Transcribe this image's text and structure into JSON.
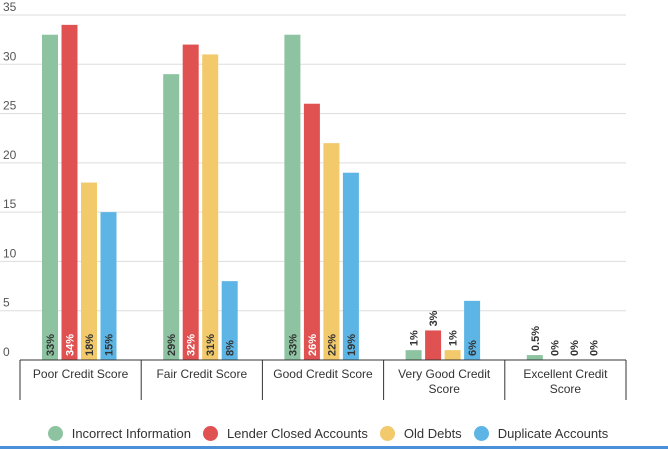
{
  "chart_data": {
    "type": "bar",
    "categories": [
      [
        "Poor Credit Score"
      ],
      [
        "Fair Credit Score"
      ],
      [
        "Good Credit Score"
      ],
      [
        "Very Good Credit",
        "Score"
      ],
      [
        "Excellent Credit",
        "Score"
      ]
    ],
    "series": [
      {
        "name": "Incorrect Information",
        "color": "#8dc3a0",
        "values": [
          33,
          29,
          33,
          1,
          0.5
        ],
        "labels": [
          "33%",
          "29%",
          "33%",
          "1%",
          "0.5%"
        ]
      },
      {
        "name": "Lender Closed Accounts",
        "color": "#e05252",
        "values": [
          34,
          32,
          26,
          3,
          0
        ],
        "labels": [
          "34%",
          "32%",
          "26%",
          "3%",
          "0%"
        ]
      },
      {
        "name": "Old Debts",
        "color": "#f2c96b",
        "values": [
          18,
          31,
          22,
          1,
          0
        ],
        "labels": [
          "18%",
          "31%",
          "22%",
          "1%",
          "0%"
        ]
      },
      {
        "name": "Duplicate Accounts",
        "color": "#5db5e6",
        "values": [
          15,
          8,
          19,
          6,
          0
        ],
        "labels": [
          "15%",
          "8%",
          "19%",
          "6%",
          "0%"
        ]
      }
    ],
    "y_ticks": [
      0,
      5,
      10,
      15,
      20,
      25,
      30,
      35
    ],
    "ylim": [
      0,
      35
    ],
    "grid": true,
    "legend_position": "bottom",
    "title": "",
    "xlabel": "",
    "ylabel": ""
  }
}
